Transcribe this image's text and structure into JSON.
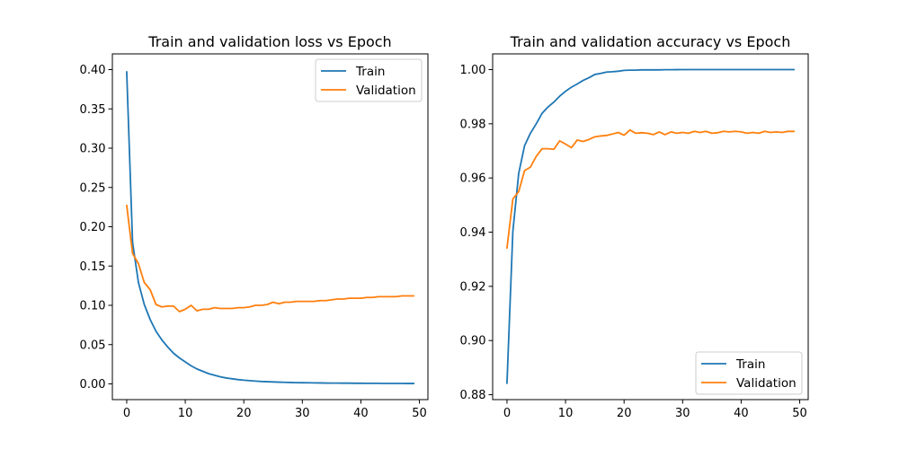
{
  "chart_data": [
    {
      "type": "line",
      "title": "Train and validation loss vs Epoch",
      "xlabel": "",
      "ylabel": "",
      "xlim": [
        -2.45,
        51.45
      ],
      "ylim": [
        -0.02,
        0.42
      ],
      "xticks": [
        0,
        10,
        20,
        30,
        40,
        50
      ],
      "xtick_labels": [
        "0",
        "10",
        "20",
        "30",
        "40",
        "50"
      ],
      "yticks": [
        0.0,
        0.05,
        0.1,
        0.15,
        0.2,
        0.25,
        0.3,
        0.35,
        0.4
      ],
      "ytick_labels": [
        "0.00",
        "0.05",
        "0.10",
        "0.15",
        "0.20",
        "0.25",
        "0.30",
        "0.35",
        "0.40"
      ],
      "legend": "top-right",
      "grid": false,
      "x": [
        0,
        1,
        2,
        3,
        4,
        5,
        6,
        7,
        8,
        9,
        10,
        11,
        12,
        13,
        14,
        15,
        16,
        17,
        18,
        19,
        20,
        21,
        22,
        23,
        24,
        25,
        26,
        27,
        28,
        29,
        30,
        31,
        32,
        33,
        34,
        35,
        36,
        37,
        38,
        39,
        40,
        41,
        42,
        43,
        44,
        45,
        46,
        47,
        48,
        49
      ],
      "series": [
        {
          "name": "Train",
          "color": "#1f77b4",
          "values": [
            0.397,
            0.18,
            0.129,
            0.101,
            0.082,
            0.067,
            0.056,
            0.047,
            0.039,
            0.033,
            0.028,
            0.023,
            0.019,
            0.016,
            0.013,
            0.011,
            0.009,
            0.0075,
            0.0065,
            0.0055,
            0.0047,
            0.0041,
            0.0036,
            0.0031,
            0.0028,
            0.0025,
            0.0022,
            0.002,
            0.0018,
            0.0016,
            0.0015,
            0.0014,
            0.0013,
            0.0012,
            0.0011,
            0.001,
            0.001,
            0.0009,
            0.0009,
            0.0008,
            0.0008,
            0.0007,
            0.0007,
            0.0007,
            0.0006,
            0.0006,
            0.0006,
            0.0006,
            0.0005,
            0.0005
          ]
        },
        {
          "name": "Validation",
          "color": "#ff7f0e",
          "values": [
            0.227,
            0.166,
            0.153,
            0.129,
            0.12,
            0.101,
            0.098,
            0.099,
            0.099,
            0.092,
            0.095,
            0.1,
            0.093,
            0.095,
            0.095,
            0.097,
            0.096,
            0.096,
            0.096,
            0.097,
            0.097,
            0.098,
            0.1,
            0.1,
            0.101,
            0.104,
            0.102,
            0.104,
            0.104,
            0.105,
            0.105,
            0.105,
            0.105,
            0.106,
            0.106,
            0.107,
            0.108,
            0.108,
            0.109,
            0.109,
            0.109,
            0.11,
            0.11,
            0.111,
            0.111,
            0.111,
            0.111,
            0.112,
            0.112,
            0.112
          ]
        }
      ]
    },
    {
      "type": "line",
      "title": "Train and validation accuracy vs Epoch",
      "xlabel": "",
      "ylabel": "",
      "xlim": [
        -2.45,
        51.45
      ],
      "ylim": [
        0.8782,
        1.0058
      ],
      "xticks": [
        0,
        10,
        20,
        30,
        40,
        50
      ],
      "xtick_labels": [
        "0",
        "10",
        "20",
        "30",
        "40",
        "50"
      ],
      "yticks": [
        0.88,
        0.9,
        0.92,
        0.94,
        0.96,
        0.98,
        1.0
      ],
      "ytick_labels": [
        "0.88",
        "0.90",
        "0.92",
        "0.94",
        "0.96",
        "0.98",
        "1.00"
      ],
      "legend": "bottom-right",
      "grid": false,
      "x": [
        0,
        1,
        2,
        3,
        4,
        5,
        6,
        7,
        8,
        9,
        10,
        11,
        12,
        13,
        14,
        15,
        16,
        17,
        18,
        19,
        20,
        21,
        22,
        23,
        24,
        25,
        26,
        27,
        28,
        29,
        30,
        31,
        32,
        33,
        34,
        35,
        36,
        37,
        38,
        39,
        40,
        41,
        42,
        43,
        44,
        45,
        46,
        47,
        48,
        49
      ],
      "series": [
        {
          "name": "Train",
          "color": "#1f77b4",
          "values": [
            0.8843,
            0.9403,
            0.9617,
            0.9719,
            0.9765,
            0.98,
            0.9839,
            0.9862,
            0.988,
            0.9902,
            0.992,
            0.9935,
            0.9947,
            0.996,
            0.997,
            0.9982,
            0.9986,
            0.9991,
            0.9992,
            0.9994,
            0.9997,
            0.9998,
            0.9998,
            0.9999,
            0.9999,
            0.9999,
            0.9999,
            0.99995,
            0.99997,
            0.99998,
            1.0,
            1.0,
            1.0,
            1.0,
            1.0,
            1.0,
            1.0,
            1.0,
            1.0,
            1.0,
            1.0,
            1.0,
            1.0,
            1.0,
            1.0,
            1.0,
            1.0,
            1.0,
            1.0,
            1.0
          ]
        },
        {
          "name": "Validation",
          "color": "#ff7f0e",
          "values": [
            0.9342,
            0.9522,
            0.955,
            0.9627,
            0.964,
            0.968,
            0.9708,
            0.9708,
            0.9706,
            0.9737,
            0.9725,
            0.9712,
            0.974,
            0.9735,
            0.9742,
            0.9752,
            0.9755,
            0.9757,
            0.9762,
            0.9768,
            0.9758,
            0.9777,
            0.9765,
            0.9767,
            0.9765,
            0.976,
            0.977,
            0.976,
            0.977,
            0.9765,
            0.9768,
            0.9765,
            0.9772,
            0.9768,
            0.9772,
            0.9765,
            0.9767,
            0.9772,
            0.977,
            0.9772,
            0.977,
            0.9765,
            0.9768,
            0.9765,
            0.9772,
            0.9768,
            0.977,
            0.9768,
            0.9772,
            0.9772
          ]
        }
      ]
    }
  ]
}
